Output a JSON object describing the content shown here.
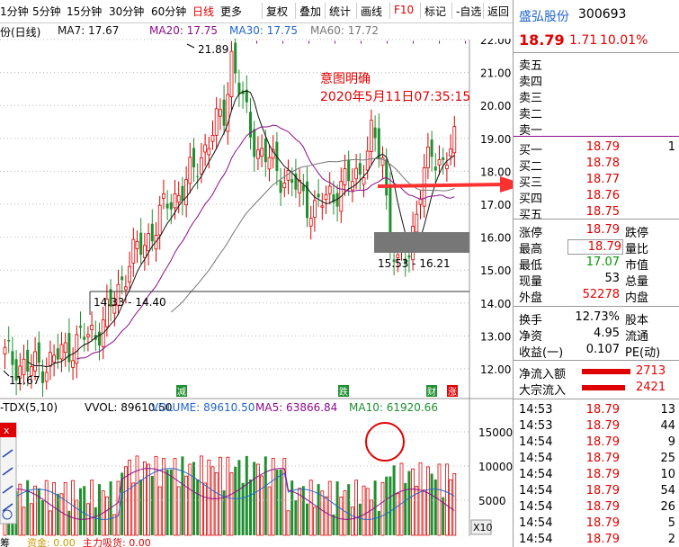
{
  "toolbar": {
    "items": [
      "1分钟",
      "5分钟",
      "15分钟",
      "30分钟",
      "60分钟",
      "日线",
      "更多",
      "复权",
      "叠加",
      "统计",
      "画线",
      "F10",
      "标记",
      "-自选",
      "返回"
    ]
  },
  "ma_line": {
    "prefix": "份(日线)",
    "ma7": "MA7: 17.67",
    "ma20": "MA20: 17.75",
    "ma30": "MA30: 17.75",
    "ma60": "MA60: 17.72"
  },
  "price_axis": [
    "22.00",
    "21.00",
    "20.00",
    "19.00",
    "18.00",
    "17.00",
    "16.00",
    "15.00",
    "14.00",
    "13.00",
    "12.00"
  ],
  "annotations": {
    "high_label": "21.89",
    "low_label": "11.67",
    "support_label": "14.33 - 14.40",
    "range_label": "15.53 - 16.21",
    "note_title": "意图明确",
    "note_time": "2020年5月11日07:35:15"
  },
  "markers": {
    "m1": "减",
    "m2": "跌",
    "m3": "财",
    "m4": "涨"
  },
  "volume_header": {
    "prefix": "-TDX(5,10)",
    "vvol": "VVOL: 89610.50",
    "volume": "VOLUME: 89610.50",
    "ma5": "MA5: 63866.84",
    "ma10": "MA10: 61920.66"
  },
  "volume_axis": [
    "15000",
    "10000",
    "5000"
  ],
  "volume_unit": "X10",
  "bottom_line": {
    "a": "筹",
    "b": "资金: 0.00",
    "c": "主力吸货: 0.00"
  },
  "quote": {
    "name": "盛弘股份",
    "code": "300693",
    "price": "18.79",
    "change": "1.71",
    "pct": "10.01%",
    "sell": [
      "卖五",
      "卖四",
      "卖三",
      "卖二",
      "卖一"
    ],
    "buy": [
      {
        "label": "买一",
        "price": "18.79",
        "vol": "1"
      },
      {
        "label": "买二",
        "price": "18.78",
        "vol": ""
      },
      {
        "label": "买三",
        "price": "18.77",
        "vol": ""
      },
      {
        "label": "买四",
        "price": "18.76",
        "vol": ""
      },
      {
        "label": "买五",
        "price": "18.75",
        "vol": ""
      }
    ],
    "stats": [
      {
        "l1": "涨停",
        "v1": "18.79",
        "c1": "red",
        "l2": "跌停"
      },
      {
        "l1": "最高",
        "v1": "18.79",
        "c1": "red",
        "l2": "量比"
      },
      {
        "l1": "最低",
        "v1": "17.07",
        "c1": "green",
        "l2": "市值"
      },
      {
        "l1": "现量",
        "v1": "53",
        "c1": "black",
        "l2": "总量"
      },
      {
        "l1": "外盘",
        "v1": "52278",
        "c1": "red",
        "l2": "内盘"
      }
    ],
    "stats2": [
      {
        "l1": "换手",
        "v1": "12.73%",
        "l2": "股本"
      },
      {
        "l1": "净资",
        "v1": "4.95",
        "l2": "流通"
      },
      {
        "l1": "收益(一)",
        "v1": "0.107",
        "l2": "PE(动)"
      }
    ],
    "flows": [
      {
        "label": "净流入额",
        "value": "2713"
      },
      {
        "label": "大宗流入",
        "value": "2421"
      }
    ],
    "ticks": [
      {
        "t": "14:53",
        "p": "18.79",
        "v": "13"
      },
      {
        "t": "14:53",
        "p": "18.79",
        "v": "44"
      },
      {
        "t": "14:54",
        "p": "18.79",
        "v": "9"
      },
      {
        "t": "14:54",
        "p": "18.79",
        "v": "25"
      },
      {
        "t": "14:54",
        "p": "18.79",
        "v": "10"
      },
      {
        "t": "14:54",
        "p": "18.79",
        "v": "54"
      },
      {
        "t": "14:54",
        "p": "18.79",
        "v": "26"
      },
      {
        "t": "14:54",
        "p": "18.79",
        "v": "5"
      },
      {
        "t": "14:54",
        "p": "18.79",
        "v": "2"
      }
    ]
  },
  "colors": {
    "up": "#e00000",
    "down": "#1f8f2f",
    "ma7": "#111111",
    "ma20": "#8b0d8b",
    "ma60": "#777777"
  }
}
